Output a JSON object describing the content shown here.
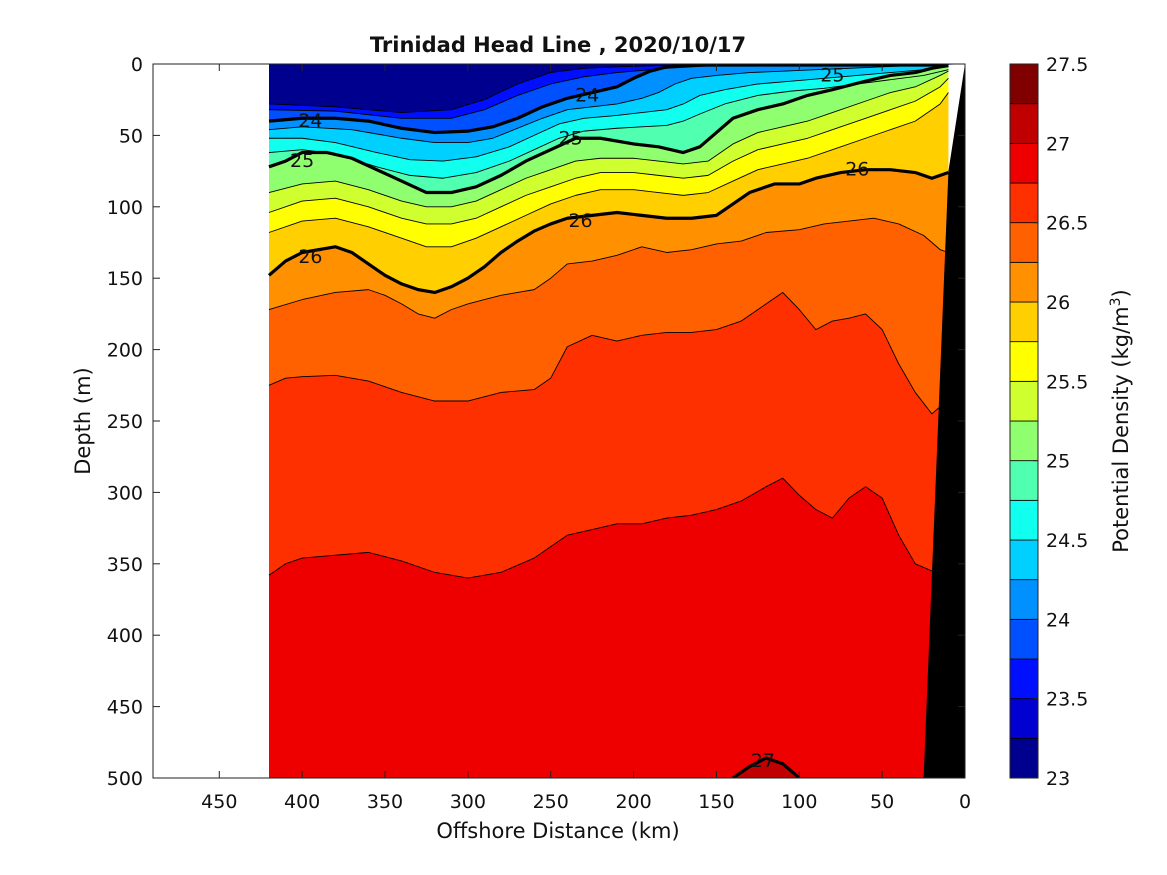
{
  "chart_data": {
    "type": "contour",
    "title": "Trinidad Head Line , 2020/10/17",
    "xlabel": "Offshore Distance (km)",
    "ylabel": "Depth (m)",
    "xlim": [
      490,
      0
    ],
    "ylim": [
      0,
      500
    ],
    "x_reversed": true,
    "y_reversed": true,
    "x_ticks": [
      "450",
      "400",
      "350",
      "300",
      "250",
      "200",
      "150",
      "100",
      "50",
      "0"
    ],
    "y_ticks": [
      "0",
      "50",
      "100",
      "150",
      "200",
      "250",
      "300",
      "350",
      "400",
      "450",
      "500"
    ],
    "x_tick_values": [
      450,
      400,
      350,
      300,
      250,
      200,
      150,
      100,
      50,
      0
    ],
    "y_tick_values": [
      0,
      50,
      100,
      150,
      200,
      250,
      300,
      350,
      400,
      450,
      500
    ],
    "data_extent_km": [
      420,
      0
    ],
    "colorbar": {
      "label": "Potential Density (kg/m",
      "label_superscript": "3",
      "label_suffix": ")",
      "min": 23,
      "max": 27.5,
      "ticks": [
        "23",
        "23.5",
        "24",
        "24.5",
        "25",
        "25.5",
        "26",
        "26.5",
        "27",
        "27.5"
      ],
      "tick_values": [
        23,
        23.5,
        24,
        24.5,
        25,
        25.5,
        26,
        26.5,
        27,
        27.5
      ],
      "levels": [
        23,
        23.25,
        23.5,
        23.75,
        24,
        24.25,
        24.5,
        24.75,
        25,
        25.25,
        25.5,
        25.75,
        26,
        26.25,
        26.5,
        26.75,
        27,
        27.25,
        27.5
      ],
      "colors": [
        "#00008f",
        "#0000d0",
        "#0010ff",
        "#0050ff",
        "#0090ff",
        "#00d0ff",
        "#10ffef",
        "#50ffaf",
        "#90ff6f",
        "#d0ff2f",
        "#ffff00",
        "#ffcf00",
        "#ff9000",
        "#ff6000",
        "#ff3000",
        "#ee0000",
        "#c00000",
        "#800000"
      ]
    },
    "contour_lines": [
      {
        "level": 23.5,
        "x": [
          420,
          380,
          340,
          310,
          290,
          270,
          250,
          230,
          210,
          180,
          150,
          120,
          90,
          60,
          40,
          20,
          10
        ],
        "y": [
          28,
          30,
          34,
          32,
          25,
          14,
          6,
          3,
          2,
          1,
          0.5,
          0.5,
          0.5,
          0.5,
          0.5,
          0.5,
          0.5
        ]
      },
      {
        "level": 23.75,
        "x": [
          420,
          380,
          340,
          310,
          290,
          270,
          250,
          230,
          210,
          180,
          150,
          120,
          90,
          60,
          40,
          20,
          10
        ],
        "y": [
          32,
          33,
          38,
          38,
          32,
          22,
          14,
          9,
          6,
          3,
          1,
          0.8,
          0.6,
          0.6,
          0.6,
          0.6,
          0.6
        ]
      },
      {
        "level": 24,
        "x": [
          420,
          400,
          380,
          360,
          340,
          320,
          300,
          285,
          270,
          255,
          240,
          225,
          210,
          200,
          190,
          180,
          170,
          160,
          150,
          135,
          120,
          100,
          80,
          60,
          40,
          20,
          10
        ],
        "y": [
          40,
          38,
          38,
          40,
          45,
          48,
          47,
          44,
          38,
          30,
          24,
          20,
          16,
          10,
          5,
          2,
          1,
          0.8,
          0.7,
          0.7,
          0.7,
          0.7,
          0.7,
          0.7,
          0.7,
          0.7,
          0.7
        ]
      },
      {
        "level": 24.25,
        "x": [
          420,
          400,
          370,
          340,
          320,
          300,
          285,
          270,
          255,
          240,
          225,
          210,
          195,
          185,
          175,
          165,
          150,
          130,
          110,
          90,
          70,
          50,
          30,
          10
        ],
        "y": [
          46,
          44,
          46,
          52,
          55,
          55,
          52,
          45,
          38,
          32,
          30,
          28,
          24,
          20,
          14,
          10,
          8,
          6,
          5,
          4,
          3,
          2,
          1,
          1
        ]
      },
      {
        "level": 24.5,
        "x": [
          420,
          400,
          380,
          355,
          335,
          315,
          295,
          275,
          260,
          245,
          230,
          210,
          195,
          180,
          170,
          160,
          145,
          125,
          105,
          85,
          65,
          45,
          25,
          10
        ],
        "y": [
          52,
          52,
          55,
          62,
          67,
          68,
          65,
          58,
          50,
          42,
          38,
          36,
          34,
          32,
          28,
          22,
          18,
          14,
          12,
          10,
          8,
          6,
          4,
          2
        ]
      },
      {
        "level": 24.75,
        "x": [
          420,
          400,
          380,
          355,
          335,
          315,
          295,
          275,
          260,
          245,
          230,
          210,
          195,
          180,
          170,
          160,
          145,
          125,
          105,
          85,
          65,
          45,
          25,
          10
        ],
        "y": [
          62,
          60,
          63,
          72,
          78,
          80,
          76,
          68,
          60,
          52,
          47,
          45,
          44,
          43,
          40,
          35,
          28,
          22,
          19,
          17,
          14,
          11,
          8,
          4
        ]
      },
      {
        "level": 25,
        "x": [
          420,
          410,
          400,
          385,
          370,
          355,
          340,
          325,
          310,
          295,
          280,
          265,
          250,
          235,
          220,
          200,
          185,
          170,
          160,
          150,
          140,
          125,
          110,
          95,
          80,
          60,
          45,
          30,
          20,
          10
        ],
        "y": [
          72,
          68,
          62,
          62,
          66,
          74,
          82,
          90,
          90,
          86,
          78,
          68,
          60,
          52,
          52,
          56,
          58,
          62,
          58,
          48,
          38,
          32,
          28,
          22,
          18,
          12,
          8,
          6,
          3,
          1
        ]
      },
      {
        "level": 25.25,
        "x": [
          420,
          400,
          380,
          360,
          340,
          325,
          310,
          295,
          280,
          265,
          250,
          235,
          220,
          200,
          185,
          170,
          155,
          140,
          125,
          110,
          95,
          80,
          60,
          45,
          30,
          15,
          10
        ],
        "y": [
          90,
          84,
          82,
          88,
          96,
          100,
          100,
          96,
          88,
          80,
          74,
          68,
          66,
          66,
          68,
          70,
          68,
          56,
          48,
          44,
          40,
          34,
          26,
          20,
          16,
          8,
          5
        ]
      },
      {
        "level": 25.5,
        "x": [
          420,
          400,
          380,
          360,
          340,
          325,
          310,
          295,
          280,
          265,
          250,
          235,
          220,
          200,
          185,
          170,
          155,
          140,
          125,
          110,
          95,
          80,
          60,
          45,
          30,
          15,
          10
        ],
        "y": [
          104,
          96,
          94,
          100,
          108,
          112,
          112,
          108,
          100,
          92,
          86,
          80,
          76,
          76,
          78,
          80,
          78,
          68,
          60,
          56,
          52,
          46,
          38,
          32,
          26,
          16,
          10
        ]
      },
      {
        "level": 25.75,
        "x": [
          420,
          400,
          380,
          360,
          340,
          325,
          310,
          295,
          280,
          265,
          250,
          235,
          220,
          200,
          185,
          170,
          155,
          140,
          125,
          110,
          95,
          80,
          60,
          45,
          30,
          15,
          10
        ],
        "y": [
          118,
          110,
          108,
          114,
          122,
          128,
          128,
          122,
          114,
          106,
          98,
          92,
          88,
          88,
          90,
          92,
          90,
          82,
          74,
          70,
          66,
          60,
          52,
          46,
          40,
          28,
          20
        ]
      },
      {
        "level": 26,
        "x": [
          420,
          410,
          400,
          380,
          370,
          360,
          350,
          340,
          330,
          320,
          310,
          300,
          290,
          280,
          270,
          260,
          250,
          240,
          225,
          210,
          195,
          180,
          165,
          150,
          140,
          130,
          115,
          100,
          90,
          75,
          60,
          45,
          30,
          20,
          10
        ],
        "y": [
          148,
          138,
          132,
          128,
          132,
          140,
          148,
          154,
          158,
          160,
          156,
          150,
          142,
          132,
          124,
          117,
          112,
          108,
          106,
          104,
          106,
          108,
          108,
          106,
          98,
          90,
          84,
          84,
          80,
          76,
          74,
          74,
          76,
          80,
          76
        ]
      },
      {
        "level": 26.25,
        "x": [
          420,
          400,
          380,
          360,
          350,
          340,
          330,
          320,
          310,
          300,
          290,
          280,
          270,
          260,
          250,
          240,
          225,
          210,
          195,
          180,
          165,
          150,
          135,
          120,
          100,
          85,
          70,
          55,
          40,
          25,
          15,
          10
        ],
        "y": [
          172,
          165,
          160,
          158,
          162,
          168,
          175,
          178,
          172,
          168,
          165,
          162,
          160,
          158,
          150,
          140,
          138,
          134,
          128,
          132,
          130,
          126,
          124,
          118,
          116,
          112,
          110,
          108,
          112,
          120,
          130,
          132
        ]
      },
      {
        "level": 26.5,
        "x": [
          420,
          410,
          400,
          380,
          360,
          340,
          320,
          300,
          280,
          260,
          250,
          240,
          225,
          210,
          195,
          180,
          165,
          150,
          135,
          120,
          110,
          100,
          90,
          80,
          70,
          60,
          50,
          40,
          30,
          20,
          15
        ],
        "y": [
          225,
          220,
          219,
          218,
          222,
          230,
          236,
          236,
          230,
          228,
          220,
          198,
          190,
          194,
          190,
          188,
          188,
          186,
          180,
          168,
          160,
          172,
          186,
          180,
          178,
          175,
          186,
          210,
          230,
          245,
          240
        ]
      },
      {
        "level": 26.75,
        "x": [
          420,
          410,
          400,
          380,
          360,
          340,
          320,
          300,
          280,
          260,
          250,
          240,
          225,
          210,
          195,
          180,
          165,
          150,
          135,
          120,
          110,
          100,
          90,
          80,
          70,
          60,
          50,
          40,
          30,
          20,
          15
        ],
        "y": [
          358,
          350,
          346,
          344,
          342,
          348,
          356,
          360,
          356,
          346,
          338,
          330,
          326,
          322,
          322,
          318,
          316,
          312,
          306,
          296,
          290,
          302,
          312,
          318,
          304,
          296,
          304,
          330,
          350,
          355,
          355
        ]
      },
      {
        "level": 27,
        "x": [
          140,
          130,
          120,
          110,
          100
        ],
        "y": [
          500,
          492,
          486,
          490,
          500
        ]
      }
    ],
    "contour_labels": [
      {
        "text": "24",
        "x": 395,
        "y": 40
      },
      {
        "text": "24",
        "x": 228,
        "y": 22
      },
      {
        "text": "25",
        "x": 400,
        "y": 68
      },
      {
        "text": "25",
        "x": 238,
        "y": 52
      },
      {
        "text": "25",
        "x": 80,
        "y": 8
      },
      {
        "text": "26",
        "x": 395,
        "y": 135
      },
      {
        "text": "26",
        "x": 232,
        "y": 110
      },
      {
        "text": "26",
        "x": 65,
        "y": 74
      },
      {
        "text": "27",
        "x": 122,
        "y": 488
      }
    ],
    "bold_levels": [
      24,
      25,
      26,
      27
    ],
    "bathymetry": {
      "label": "seafloor",
      "x": [
        10,
        0,
        0,
        25
      ],
      "y": [
        75,
        0,
        500,
        500
      ]
    }
  }
}
